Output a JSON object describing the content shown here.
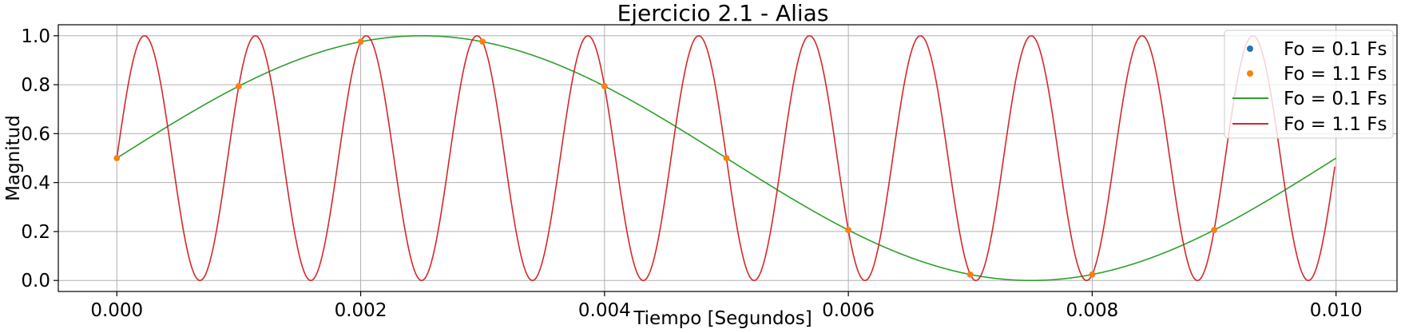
{
  "chart_data": {
    "type": "line",
    "title": "Ejercicio 2.1 - Alias",
    "xlabel": "Tiempo [Segundos]",
    "ylabel": "Magnitud",
    "xlim": [
      -0.00048,
      0.0105
    ],
    "ylim": [
      -0.045,
      1.045
    ],
    "x_ticks": [
      0.0,
      0.002,
      0.004,
      0.006,
      0.008,
      0.01
    ],
    "x_tick_labels": [
      "0.000",
      "0.002",
      "0.004",
      "0.006",
      "0.008",
      "0.010"
    ],
    "y_ticks": [
      0.0,
      0.2,
      0.4,
      0.6,
      0.8,
      1.0
    ],
    "y_tick_labels": [
      "0.0",
      "0.2",
      "0.4",
      "0.6",
      "0.8",
      "1.0"
    ],
    "grid": true,
    "legend_position": "top-right",
    "colors": {
      "blue": "#1f77b4",
      "orange": "#ff7f0e",
      "green": "#2ca02c",
      "red": "#d62728"
    },
    "series": [
      {
        "name": "Fo = 0.1 Fs",
        "kind": "markers",
        "color": "#1f77b4",
        "x": [
          0.0,
          0.001,
          0.002,
          0.003,
          0.004,
          0.005,
          0.006,
          0.007,
          0.008,
          0.009
        ],
        "y": [
          0.5,
          0.794,
          0.976,
          0.976,
          0.794,
          0.5,
          0.206,
          0.024,
          0.024,
          0.206
        ]
      },
      {
        "name": "Fo = 1.1 Fs",
        "kind": "markers",
        "color": "#ff7f0e",
        "x": [
          0.0,
          0.001,
          0.002,
          0.003,
          0.004,
          0.005,
          0.006,
          0.007,
          0.008,
          0.009
        ],
        "y": [
          0.5,
          0.794,
          0.976,
          0.976,
          0.794,
          0.5,
          0.206,
          0.024,
          0.024,
          0.206
        ]
      },
      {
        "name": "Fo = 0.1 Fs",
        "kind": "line",
        "color": "#2ca02c",
        "frequency_hz": 100,
        "offset": 0.5,
        "amplitude": 0.5,
        "x_range": [
          0.0,
          0.01
        ]
      },
      {
        "name": "Fo = 1.1 Fs",
        "kind": "line",
        "color": "#d62728",
        "frequency_hz": 1100,
        "offset": 0.5,
        "amplitude": 0.5,
        "x_range": [
          0.0,
          0.00999
        ]
      }
    ]
  }
}
